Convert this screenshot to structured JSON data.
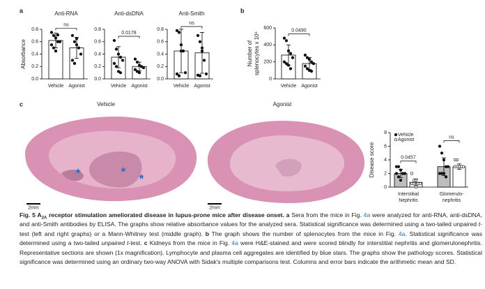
{
  "panel_labels": [
    "a",
    "b",
    "c"
  ],
  "chart_data": [
    {
      "type": "bar",
      "title": "Anti-RNA",
      "ylabel": [
        "Absorbance"
      ],
      "categories": [
        "Vehicle",
        "Agonist"
      ],
      "values": [
        0.62,
        0.5
      ],
      "errors": [
        0.12,
        0.17
      ],
      "points": [
        [
          0.75,
          0.7,
          0.66,
          0.6,
          0.6,
          0.55,
          0.5,
          0.45,
          0.71
        ],
        [
          0.7,
          0.6,
          0.55,
          0.5,
          0.4,
          0.3,
          0.25,
          0.65
        ]
      ],
      "color": "#ffffff",
      "marker": "filled",
      "ylim": [
        0,
        0.8
      ],
      "yticks": [
        {
          "value": 0,
          "label": "0.0"
        },
        {
          "value": 0.2,
          "label": "0.2"
        },
        {
          "value": 0.4,
          "label": "0.4"
        },
        {
          "value": 0.6,
          "label": "0.6"
        },
        {
          "value": 0.8,
          "label": "0.8"
        }
      ],
      "annotation": "ns"
    },
    {
      "type": "bar",
      "title": "Anti-dsDNA",
      "categories": [
        "Vehicle",
        "Agonist"
      ],
      "values": [
        0.35,
        0.2
      ],
      "errors": [
        0.17,
        0.07
      ],
      "points": [
        [
          0.62,
          0.48,
          0.4,
          0.35,
          0.3,
          0.25,
          0.2,
          0.12,
          0.1
        ],
        [
          0.32,
          0.27,
          0.22,
          0.2,
          0.18,
          0.15,
          0.12,
          0.1
        ]
      ],
      "color": "#ffffff",
      "marker": "filled",
      "ylim": [
        0,
        0.8
      ],
      "yticks": [
        {
          "value": 0,
          "label": "0.0"
        },
        {
          "value": 0.2,
          "label": "0.2"
        },
        {
          "value": 0.4,
          "label": "0.4"
        },
        {
          "value": 0.6,
          "label": "0.6"
        },
        {
          "value": 0.8,
          "label": "0.8"
        }
      ],
      "annotation": "0.0178"
    },
    {
      "type": "bar",
      "title": "Anti-Smith",
      "categories": [
        "Vehicle",
        "Agonist"
      ],
      "values": [
        0.45,
        0.42
      ],
      "errors": [
        0.35,
        0.33
      ],
      "points": [
        [
          0.78,
          0.75,
          0.55,
          0.45,
          0.1,
          0.08,
          0.05,
          0.45
        ],
        [
          0.7,
          0.6,
          0.5,
          0.3,
          0.08,
          0.06,
          0.05,
          0.45
        ]
      ],
      "color": "#ffffff",
      "marker": "filled",
      "ylim": [
        0,
        0.8
      ],
      "yticks": [
        {
          "value": 0,
          "label": "0.0"
        },
        {
          "value": 0.2,
          "label": "0.2"
        },
        {
          "value": 0.4,
          "label": "0.4"
        },
        {
          "value": 0.6,
          "label": "0.6"
        },
        {
          "value": 0.8,
          "label": "0.8"
        }
      ],
      "annotation": "ns"
    },
    {
      "type": "bar",
      "ylabel": [
        "Number of",
        "splenocytes x 10⁶"
      ],
      "categories": [
        "Vehicle",
        "Agonist"
      ],
      "values": [
        280,
        180
      ],
      "errors": [
        120,
        70
      ],
      "points": [
        [
          480,
          450,
          330,
          300,
          250,
          200,
          180,
          160,
          120
        ],
        [
          280,
          250,
          230,
          200,
          180,
          150,
          120,
          100,
          90
        ]
      ],
      "color": "#ffffff",
      "marker": "filled",
      "ylim": [
        0,
        600
      ],
      "yticks": [
        0,
        200,
        400,
        600
      ],
      "annotation": "0.0490"
    },
    {
      "type": "bar",
      "ylabel": [
        "Disease score"
      ],
      "categories": [
        [
          "Interstitial",
          "Nephritis"
        ],
        [
          "Glomerulo-",
          "nephritis"
        ]
      ],
      "series": [
        {
          "name": "Vehicle",
          "color": "#bdbdbd",
          "marker": "filled",
          "values": [
            2,
            3
          ],
          "errors": [
            0.6,
            1.3
          ],
          "points": [
            [
              3,
              3,
              2.5,
              2,
              2,
              2,
              1.5,
              1,
              2
            ],
            [
              6,
              5,
              4,
              3,
              3,
              2,
              2,
              2,
              1.5
            ]
          ]
        },
        {
          "name": "Agonist",
          "color": "#ffffff",
          "marker": "open",
          "values": [
            0.7,
            3
          ],
          "errors": [
            0.5,
            0.4
          ],
          "points": [
            [
              2,
              1,
              1,
              0.5,
              0.5,
              0.5,
              0.5,
              0
            ],
            [
              4,
              4,
              3,
              3,
              3,
              3,
              3,
              3,
              3
            ]
          ]
        }
      ],
      "ylim": [
        0,
        8
      ],
      "yticks": [
        0,
        2,
        4,
        6,
        8
      ],
      "legend": "top-left",
      "annotations": [
        "0.0457",
        "ns"
      ]
    }
  ],
  "images": {
    "labels": [
      "Vehicle",
      "Agonist"
    ],
    "scale_bars": [
      "2mm",
      "2mm"
    ]
  },
  "caption": [
    {
      "text": "Fig. 5 A",
      "bold": true
    },
    {
      "text": "2A",
      "bold": true,
      "sub": true
    },
    {
      "text": " receptor stimulation ameliorated disease in lupus-prone mice after disease onset.",
      "bold": true
    },
    {
      "text": " a",
      "bold": true
    },
    {
      "text": " Sera from the mice in Fig. "
    },
    {
      "text": "4a",
      "link": true
    },
    {
      "text": " were analyzed for anti-RNA, anti-dsDNA, and anti-Smith antibodies by ELISA. The graphs show relative absorbance values for the analyzed sera. Statistical significance was determined using a two-tailed unpaired "
    },
    {
      "text": "t",
      "italic": true
    },
    {
      "text": "-test (left and right graphs) or a Mann-Whitney test (middle graph). "
    },
    {
      "text": "b",
      "bold": true
    },
    {
      "text": " The graph shows the number of splenocytes from the mice in Fig. "
    },
    {
      "text": "4a",
      "link": true
    },
    {
      "text": ". Statistical significance was determined using a two-tailed "
    },
    {
      "text": "unpaired t",
      "italic": true
    },
    {
      "text": "-test. "
    },
    {
      "text": "c",
      "bold": true
    },
    {
      "text": " Kidneys from the mice in Fig. "
    },
    {
      "text": "4a",
      "link": true
    },
    {
      "text": " were H&E-stained and were scored blindly for interstitial nephritis and glomerulonephritis. Representative sections are shown (1x magnification). Lymphocyte and plasma cell aggregates are identified by blue stars. The graphs show the pathology scores. Statistical significance was determined using an ordinary two-way ANOVA with Sidak's multiple comparisons test. Columns and error bars indicate the arithmetic mean and SD."
    }
  ]
}
